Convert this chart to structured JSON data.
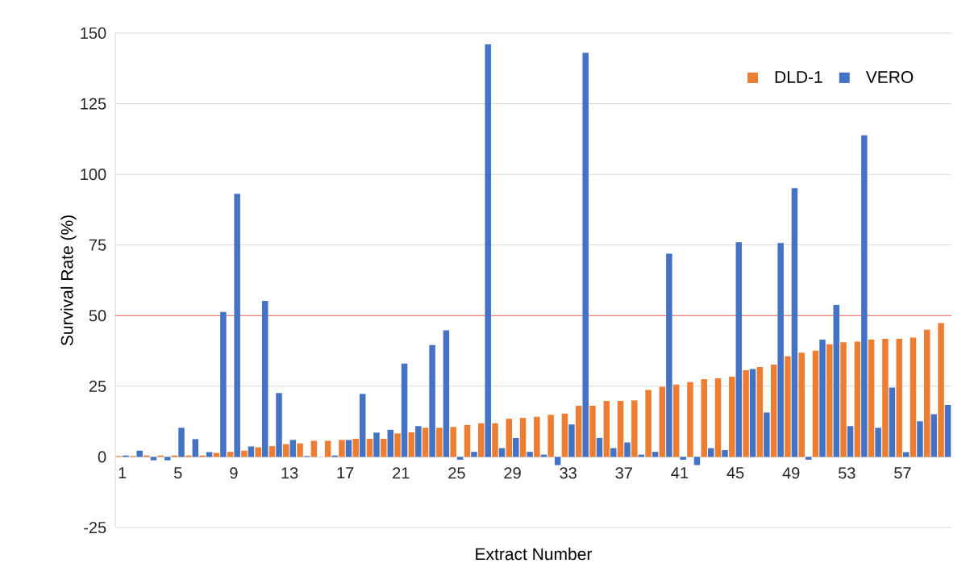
{
  "chart_data": {
    "type": "bar",
    "xlabel": "Extract Number",
    "ylabel": "Survival Rate (%)",
    "categories": [
      "1",
      null,
      null,
      null,
      "5",
      null,
      null,
      null,
      "9",
      null,
      null,
      null,
      "13",
      null,
      null,
      null,
      "17",
      null,
      null,
      null,
      "21",
      null,
      null,
      null,
      "25",
      null,
      null,
      null,
      "29",
      null,
      null,
      null,
      "33",
      null,
      null,
      null,
      "37",
      null,
      null,
      null,
      "41",
      null,
      null,
      null,
      "45",
      null,
      null,
      null,
      "49",
      null,
      null,
      null,
      "53",
      null,
      null,
      null,
      "57",
      null,
      null,
      null
    ],
    "series": [
      {
        "name": "DLD-1",
        "color": "#ed7d31",
        "values": [
          0.3,
          0.3,
          0.5,
          0.5,
          0.5,
          0.5,
          0.5,
          1.4,
          1.8,
          2.2,
          3.4,
          3.8,
          4.5,
          4.8,
          5.7,
          5.7,
          6.0,
          6.4,
          6.4,
          6.4,
          8.3,
          8.7,
          10.3,
          10.3,
          10.6,
          11.3,
          11.9,
          11.9,
          13.5,
          13.8,
          14.2,
          14.9,
          15.3,
          18.1,
          18.1,
          19.8,
          19.8,
          20.0,
          23.7,
          24.8,
          25.6,
          26.5,
          27.5,
          27.8,
          28.4,
          30.7,
          31.8,
          32.7,
          35.6,
          36.9,
          37.6,
          39.9,
          40.6,
          40.8,
          41.5,
          41.8,
          41.8,
          42.2,
          45.0,
          47.4
        ]
      },
      {
        "name": "VERO",
        "color": "#4472c4",
        "values": [
          0.5,
          2.2,
          -1.2,
          -1.2,
          10.3,
          6.3,
          1.7,
          51.3,
          93.1,
          3.7,
          55.2,
          22.6,
          6.0,
          0.3,
          null,
          0.5,
          6.0,
          22.3,
          8.6,
          9.6,
          33.0,
          10.9,
          39.6,
          44.8,
          -1.0,
          1.8,
          146,
          3.1,
          6.7,
          1.8,
          0.8,
          -2.9,
          11.5,
          143,
          6.7,
          3.1,
          5.1,
          0.8,
          1.8,
          71.9,
          -1.0,
          -2.9,
          3.1,
          2.4,
          76.0,
          31.1,
          15.7,
          75.7,
          95.1,
          -1.0,
          41.5,
          53.8,
          10.9,
          113.8,
          10.3,
          24.5,
          1.7,
          12.6,
          15.1,
          18.4
        ]
      }
    ],
    "ylim": [
      -25,
      150
    ],
    "yticks": [
      -25,
      0,
      25,
      50,
      75,
      100,
      125,
      150
    ],
    "grid": "y",
    "legend": "top right",
    "ref_lines": [
      {
        "axis": "y",
        "value": 50,
        "color": "#f08080",
        "line_style": "solid"
      }
    ]
  }
}
